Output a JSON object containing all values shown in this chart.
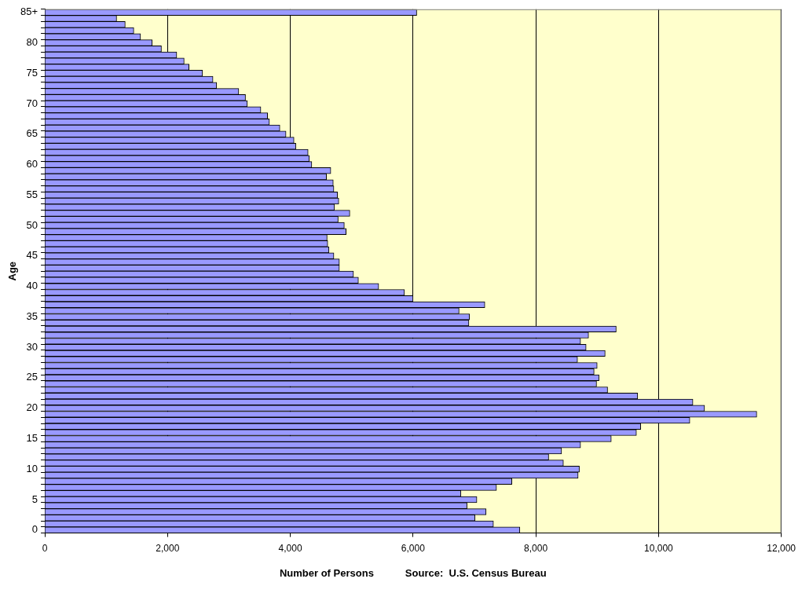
{
  "chart_data": {
    "type": "bar",
    "orientation": "horizontal",
    "xlabel": "Number of Persons",
    "ylabel": "Age",
    "annotations": [
      "Source:  U.S. Census Bureau"
    ],
    "categories": [
      "85+",
      null,
      null,
      null,
      null,
      "80",
      null,
      null,
      null,
      null,
      "75",
      null,
      null,
      null,
      null,
      "70",
      null,
      null,
      null,
      null,
      "65",
      null,
      null,
      null,
      null,
      "60",
      null,
      null,
      null,
      null,
      "55",
      null,
      null,
      null,
      null,
      "50",
      null,
      null,
      null,
      null,
      "45",
      null,
      null,
      null,
      null,
      "40",
      null,
      null,
      null,
      null,
      "35",
      null,
      null,
      null,
      null,
      "30",
      null,
      null,
      null,
      null,
      "25",
      null,
      null,
      null,
      null,
      "20",
      null,
      null,
      null,
      null,
      "15",
      null,
      null,
      null,
      null,
      "10",
      null,
      null,
      null,
      null,
      "5",
      null,
      null,
      null,
      null,
      "0"
    ],
    "values": [
      6060,
      1170,
      1310,
      1450,
      1560,
      1750,
      1900,
      2150,
      2270,
      2350,
      2570,
      2740,
      2800,
      3160,
      3270,
      3300,
      3520,
      3630,
      3660,
      3830,
      3930,
      4060,
      4090,
      4290,
      4310,
      4350,
      4660,
      4590,
      4700,
      4710,
      4770,
      4790,
      4720,
      4970,
      4780,
      4880,
      4910,
      4600,
      4610,
      4630,
      4710,
      4800,
      4800,
      5030,
      5110,
      5440,
      5860,
      6000,
      7170,
      6750,
      6920,
      6910,
      9310,
      8860,
      8730,
      8820,
      9130,
      8680,
      9000,
      8950,
      9030,
      8990,
      9170,
      9660,
      10560,
      10750,
      11600,
      10510,
      9710,
      9640,
      9230,
      8730,
      8420,
      8210,
      8450,
      8710,
      8690,
      7610,
      7360,
      6780,
      7040,
      6880,
      7190,
      7010,
      7310,
      7740
    ],
    "color": "#9999ff",
    "xlim": [
      0,
      12000
    ],
    "xticks": [
      {
        "value": 0,
        "label": "0"
      },
      {
        "value": 2000,
        "label": "2,000"
      },
      {
        "value": 4000,
        "label": "4,000"
      },
      {
        "value": 6000,
        "label": "6,000"
      },
      {
        "value": 8000,
        "label": "8,000"
      },
      {
        "value": 10000,
        "label": "10,000"
      },
      {
        "value": 12000,
        "label": "12,000"
      }
    ],
    "grid": "x"
  }
}
